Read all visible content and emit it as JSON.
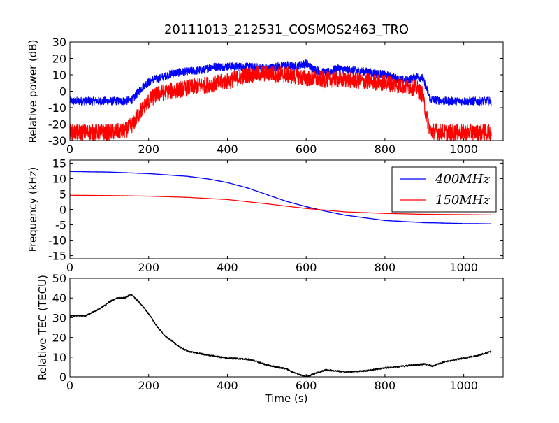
{
  "title": "20111013_212531_COSMOS2463_TRO",
  "chart_data": [
    {
      "type": "line",
      "ylabel": "Relative power (dB)",
      "xlabel": "",
      "xlim": [
        0,
        1100
      ],
      "ylim": [
        -30,
        30
      ],
      "xticks": [
        0,
        200,
        400,
        600,
        800,
        1000
      ],
      "yticks": [
        -30,
        -20,
        -10,
        0,
        10,
        20,
        30
      ],
      "series": [
        {
          "name": "400MHz",
          "color": "#0000ff",
          "noise": 2.5,
          "x": [
            0,
            50,
            100,
            140,
            160,
            175,
            190,
            210,
            230,
            260,
            300,
            340,
            360,
            400,
            450,
            500,
            550,
            570,
            600,
            610,
            625,
            650,
            680,
            700,
            750,
            800,
            840,
            860,
            880,
            895,
            905,
            915,
            950,
            1000,
            1070
          ],
          "y": [
            -6,
            -6,
            -6,
            -6,
            -5,
            0,
            4,
            7,
            8,
            11,
            12,
            13,
            15,
            15,
            15,
            14,
            16,
            15,
            17,
            15,
            13,
            11,
            14,
            13,
            12,
            10,
            7,
            7,
            9,
            8,
            2,
            -5,
            -6,
            -6,
            -6
          ]
        },
        {
          "name": "150MHz",
          "color": "#ff0000",
          "noise": 5,
          "x": [
            0,
            100,
            140,
            160,
            180,
            200,
            220,
            250,
            300,
            350,
            400,
            450,
            500,
            550,
            600,
            650,
            700,
            750,
            800,
            850,
            880,
            895,
            905,
            915,
            950,
            1000,
            1070
          ],
          "y": [
            -25,
            -25,
            -24,
            -20,
            -12,
            -6,
            -2,
            0,
            2,
            4,
            6,
            10,
            11,
            10,
            8,
            7,
            7,
            6,
            5,
            3,
            2,
            -2,
            -15,
            -24,
            -25,
            -25,
            -25
          ]
        }
      ]
    },
    {
      "type": "line",
      "ylabel": "Frequency (kHz)",
      "xlabel": "",
      "xlim": [
        0,
        1100
      ],
      "ylim": [
        -16,
        16
      ],
      "xticks": [
        0,
        200,
        400,
        600,
        800,
        1000
      ],
      "yticks": [
        -15,
        -10,
        -5,
        0,
        5,
        10,
        15
      ],
      "legend_position": "top-right",
      "series": [
        {
          "name": "400MHz",
          "legend_label": "400MHz",
          "color": "#0000ff",
          "noise": 0.05,
          "x": [
            0,
            100,
            200,
            300,
            350,
            400,
            450,
            500,
            550,
            600,
            650,
            700,
            800,
            900,
            1000,
            1070
          ],
          "y": [
            12.3,
            12.1,
            11.6,
            10.7,
            9.9,
            8.7,
            7.0,
            4.8,
            2.6,
            0.9,
            -0.6,
            -1.9,
            -3.6,
            -4.3,
            -4.6,
            -4.7
          ]
        },
        {
          "name": "150MHz",
          "legend_label": "150MHz",
          "color": "#ff0000",
          "noise": 0.02,
          "x": [
            0,
            100,
            200,
            300,
            400,
            500,
            600,
            700,
            800,
            900,
            1000,
            1070
          ],
          "y": [
            4.6,
            4.5,
            4.3,
            3.9,
            3.2,
            1.8,
            0.3,
            -0.8,
            -1.3,
            -1.6,
            -1.7,
            -1.8
          ]
        }
      ]
    },
    {
      "type": "line",
      "ylabel": "Relative TEC (TECU)",
      "xlabel": "Time (s)",
      "xlim": [
        0,
        1100
      ],
      "ylim": [
        0,
        50
      ],
      "xticks": [
        0,
        200,
        400,
        600,
        800,
        1000
      ],
      "yticks": [
        0,
        10,
        20,
        30,
        40,
        50
      ],
      "series": [
        {
          "name": "TEC",
          "color": "#000000",
          "noise": 0.4,
          "x": [
            0,
            20,
            40,
            60,
            80,
            100,
            120,
            140,
            155,
            165,
            180,
            200,
            220,
            240,
            260,
            280,
            300,
            350,
            400,
            450,
            470,
            500,
            550,
            570,
            600,
            620,
            650,
            700,
            750,
            800,
            850,
            900,
            920,
            950,
            1000,
            1040,
            1070
          ],
          "y": [
            31,
            31,
            31,
            33,
            35,
            38,
            40,
            40,
            42,
            40,
            37,
            32,
            26,
            21,
            18,
            15,
            13,
            11,
            9.5,
            9,
            8,
            6,
            4,
            2,
            0,
            1.5,
            3.5,
            2.5,
            3,
            4.5,
            5.5,
            6.5,
            5.5,
            7.5,
            9.5,
            11,
            13
          ]
        }
      ]
    }
  ]
}
